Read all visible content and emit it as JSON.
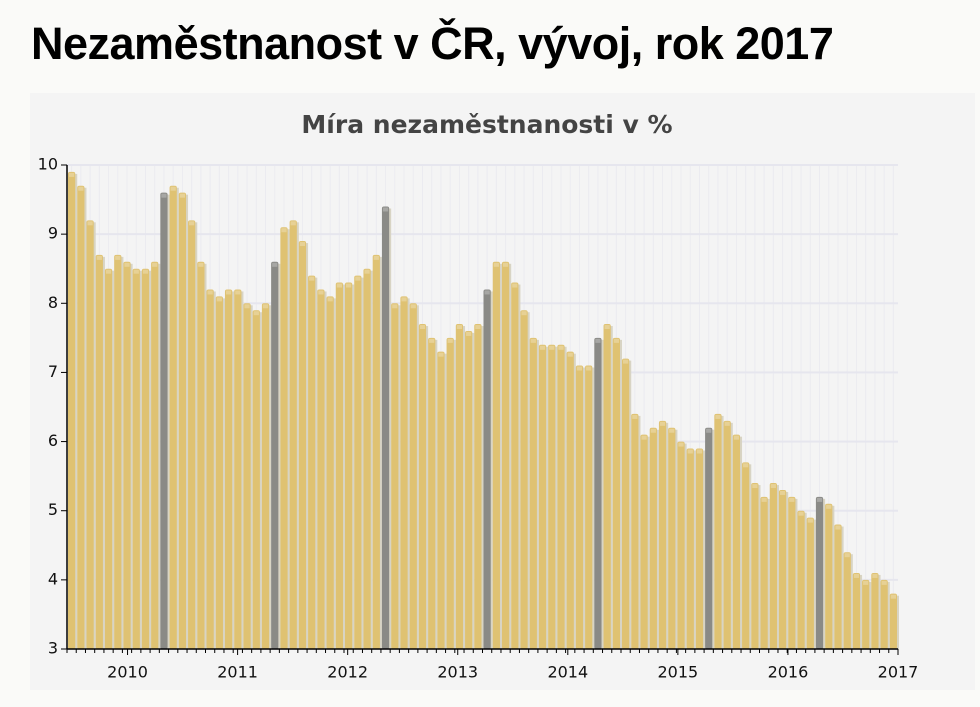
{
  "header": {
    "title": "Nezaměstnanost v ČR, vývoj, rok 2017"
  },
  "chart_data": {
    "type": "bar",
    "title": "Míra nezaměstnanosti v %",
    "categories": [
      null,
      null,
      null,
      null,
      null,
      null,
      null,
      null,
      null,
      null,
      null,
      null,
      null,
      null,
      null,
      null,
      null,
      null,
      null,
      null,
      null,
      null,
      null,
      null,
      null,
      null,
      null,
      null,
      null,
      null,
      null,
      null,
      null,
      null,
      null,
      null,
      null,
      null,
      null,
      null,
      null,
      null,
      null,
      null,
      null,
      null,
      null,
      null,
      null,
      null,
      null,
      null,
      null,
      null,
      null,
      null,
      null,
      null,
      null,
      null,
      null,
      null,
      null,
      null,
      null,
      null,
      null,
      null,
      null,
      null,
      null,
      null,
      null,
      null,
      null,
      null,
      null,
      null,
      null,
      null,
      null,
      null,
      null,
      null,
      null,
      null,
      null,
      null,
      null,
      null
    ],
    "values": [
      9.9,
      9.7,
      9.2,
      8.7,
      8.5,
      8.7,
      8.6,
      8.5,
      8.5,
      8.6,
      9.6,
      9.7,
      9.6,
      9.2,
      8.6,
      8.2,
      8.1,
      8.2,
      8.2,
      8.0,
      7.9,
      8.0,
      8.6,
      9.1,
      9.2,
      8.9,
      8.4,
      8.2,
      8.1,
      8.3,
      8.3,
      8.4,
      8.5,
      8.7,
      9.4,
      8.0,
      8.1,
      8.0,
      7.7,
      7.5,
      7.3,
      7.5,
      7.7,
      7.6,
      7.7,
      8.2,
      8.6,
      8.6,
      8.3,
      7.9,
      7.5,
      7.4,
      7.4,
      7.4,
      7.3,
      7.1,
      7.1,
      7.5,
      7.7,
      7.5,
      7.2,
      6.4,
      6.1,
      6.2,
      6.3,
      6.2,
      6.0,
      5.9,
      5.9,
      6.2,
      6.4,
      6.3,
      6.1,
      5.7,
      5.4,
      5.2,
      5.4,
      5.3,
      5.2,
      5.0,
      4.9,
      5.2,
      5.1,
      4.8,
      4.4,
      4.1,
      4.0,
      4.1,
      4.0,
      3.8
    ],
    "colors": [
      "#dfc272",
      "#dfc272",
      "#dfc272",
      "#dfc272",
      "#dfc272",
      "#dfc272",
      "#dfc272",
      "#dfc272",
      "#dfc272",
      "#dfc272",
      "#8a8a86",
      "#dfc272",
      "#dfc272",
      "#dfc272",
      "#dfc272",
      "#dfc272",
      "#dfc272",
      "#dfc272",
      "#dfc272",
      "#dfc272",
      "#dfc272",
      "#dfc272",
      "#8a8a86",
      "#dfc272",
      "#dfc272",
      "#dfc272",
      "#dfc272",
      "#dfc272",
      "#dfc272",
      "#dfc272",
      "#dfc272",
      "#dfc272",
      "#dfc272",
      "#dfc272",
      "#8a8a86",
      "#dfc272",
      "#dfc272",
      "#dfc272",
      "#dfc272",
      "#dfc272",
      "#dfc272",
      "#dfc272",
      "#dfc272",
      "#dfc272",
      "#dfc272",
      "#8a8a86",
      "#dfc272",
      "#dfc272",
      "#dfc272",
      "#dfc272",
      "#dfc272",
      "#dfc272",
      "#dfc272",
      "#dfc272",
      "#dfc272",
      "#dfc272",
      "#dfc272",
      "#8a8a86",
      "#dfc272",
      "#dfc272",
      "#dfc272",
      "#dfc272",
      "#dfc272",
      "#dfc272",
      "#dfc272",
      "#dfc272",
      "#dfc272",
      "#dfc272",
      "#dfc272",
      "#8a8a86",
      "#dfc272",
      "#dfc272",
      "#dfc272",
      "#dfc272",
      "#dfc272",
      "#dfc272",
      "#dfc272",
      "#dfc272",
      "#dfc272",
      "#dfc272",
      "#dfc272",
      "#8a8a86",
      "#dfc272",
      "#dfc272",
      "#dfc272",
      "#dfc272",
      "#dfc272",
      "#dfc272",
      "#dfc272",
      "#dfc272"
    ],
    "xlim": [
      2009.45,
      2017
    ],
    "xticks": [
      2010,
      2011,
      2012,
      2013,
      2014,
      2015,
      2016,
      2017
    ],
    "ylim": [
      3,
      10
    ],
    "yticks": [
      3,
      4,
      5,
      6,
      7,
      8,
      9,
      10
    ],
    "grid": true
  }
}
